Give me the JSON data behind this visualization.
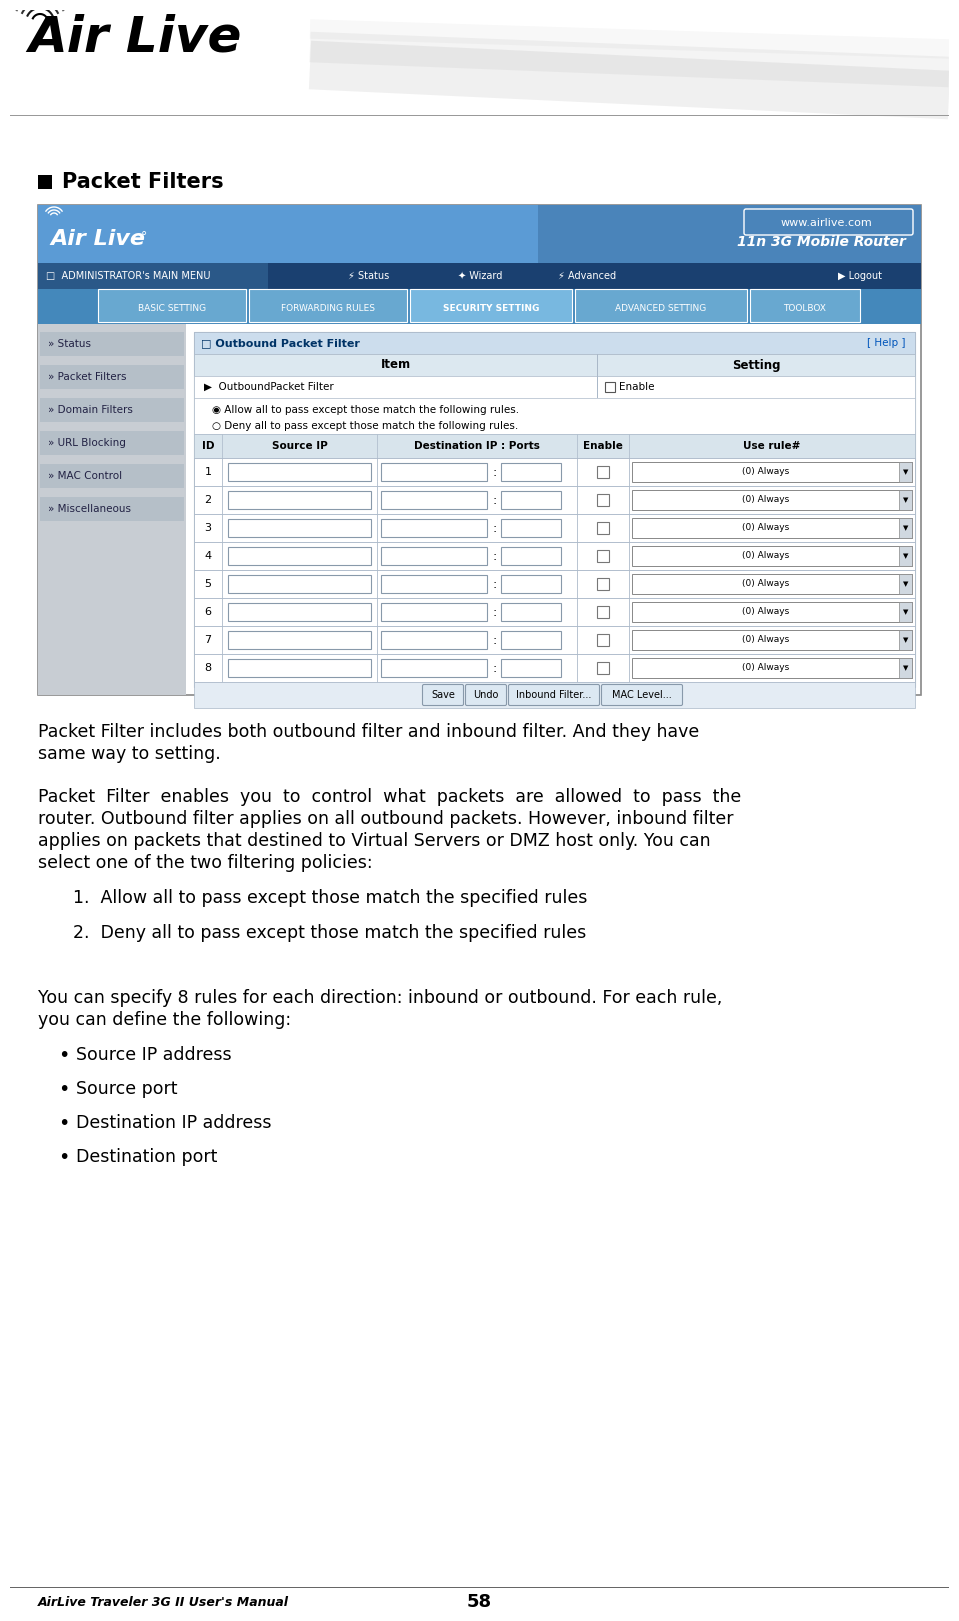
{
  "page_width": 9.39,
  "page_height": 15.92,
  "dpi": 100,
  "bg_color": "#ffffff",
  "header_section_title": "Packet Filters",
  "body_text_1a": "Packet Filter includes both outbound filter and inbound filter. And they have",
  "body_text_1b": "same way to setting.",
  "body_text_2a": "Packet  Filter  enables  you  to  control  what  packets  are  allowed  to  pass  the",
  "body_text_2b": "router. Outbound filter applies on all outbound packets. However, inbound filter",
  "body_text_2c": "applies on packets that destined to Virtual Servers or DMZ host only. You can",
  "body_text_2d": "select one of the two filtering policies:",
  "list_items_numbered": [
    "Allow all to pass except those match the specified rules",
    "Deny all to pass except those match the specified rules"
  ],
  "body_text_3a": "You can specify 8 rules for each direction: inbound or outbound. For each rule,",
  "body_text_3b": "you can define the following:",
  "list_items_bullet": [
    "Source IP address",
    "Source port",
    "Destination IP address",
    "Destination port"
  ],
  "footer_left": "AirLive Traveler 3G II User's Manual",
  "footer_center": "58",
  "color_router_hdr": "#5b9bd5",
  "color_router_hdr_dark": "#3a6fa0",
  "color_nav_bg": "#336699",
  "color_nav_text": "#ffffff",
  "color_tab_bg": "#4a8abf",
  "color_tab_active": "#5b9bd5",
  "color_sidebar_bg": "#c8d0d8",
  "color_sidebar_item_bg": "#b8c4cc",
  "color_panel_hdr": "#b8d4e8",
  "color_table_hdr": "#d0dce8",
  "color_table_row_alt": "#f0f4f8",
  "color_border": "#aab8c8",
  "color_input_border": "#8899aa",
  "sidebar_items": [
    "» Status",
    "» Packet Filters",
    "» Domain Filters",
    "» URL Blocking",
    "» MAC Control",
    "» Miscellaneous"
  ],
  "tab_items": [
    "BASIC SETTING",
    "FORWARDING RULES",
    "SECURITY SETTING",
    "ADVANCED SETTING",
    "TOOLBOX"
  ]
}
